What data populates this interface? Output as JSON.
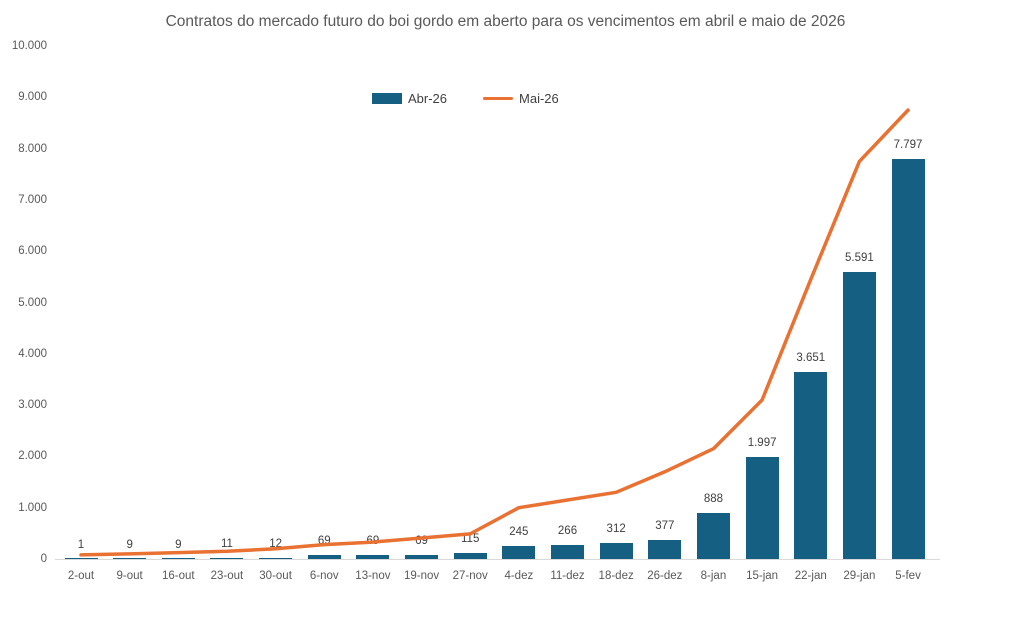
{
  "chart_data": {
    "type": "combo-bar-line",
    "title": "Contratos do mercado futuro do boi gordo em aberto para os vencimentos em abril e maio de 2026",
    "categories": [
      "2-out",
      "9-out",
      "16-out",
      "23-out",
      "30-out",
      "6-nov",
      "13-nov",
      "19-nov",
      "27-nov",
      "4-dez",
      "11-dez",
      "18-dez",
      "26-dez",
      "8-jan",
      "15-jan",
      "22-jan",
      "29-jan",
      "5-fev"
    ],
    "series": [
      {
        "name": "Abr-26",
        "type": "bar",
        "color": "#156082",
        "values": [
          1,
          9,
          9,
          11,
          12,
          69,
          69,
          69,
          115,
          245,
          266,
          312,
          377,
          888,
          1997,
          3651,
          5591,
          7797
        ],
        "labels": [
          "1",
          "9",
          "9",
          "11",
          "12",
          "69",
          "69",
          "69",
          "115",
          "245",
          "266",
          "312",
          "377",
          "888",
          "1.997",
          "3.651",
          "5.591",
          "7.797"
        ]
      },
      {
        "name": "Mai-26",
        "type": "line",
        "color": "#E97132",
        "values": [
          80,
          100,
          125,
          150,
          200,
          280,
          330,
          410,
          490,
          1000,
          1150,
          1300,
          1700,
          2150,
          3100,
          5450,
          7750,
          8750
        ]
      }
    ],
    "yticks": {
      "values": [
        0,
        1000,
        2000,
        3000,
        4000,
        5000,
        6000,
        7000,
        8000,
        9000,
        10000
      ],
      "labels": [
        "0",
        "1.000",
        "2.000",
        "3.000",
        "4.000",
        "5.000",
        "6.000",
        "7.000",
        "8.000",
        "9.000",
        "10.000"
      ]
    },
    "ylim": [
      0,
      10000
    ],
    "grid": false,
    "legend_position": "top-center",
    "data_labels_on": "Abr-26"
  },
  "colors": {
    "background": "#FFFFFF",
    "title_text": "#595959",
    "axis_labels": "#595959",
    "data_labels": "#404040",
    "axis_line": "#D9D9D9",
    "bar": "#156082",
    "line": "#E97132"
  }
}
